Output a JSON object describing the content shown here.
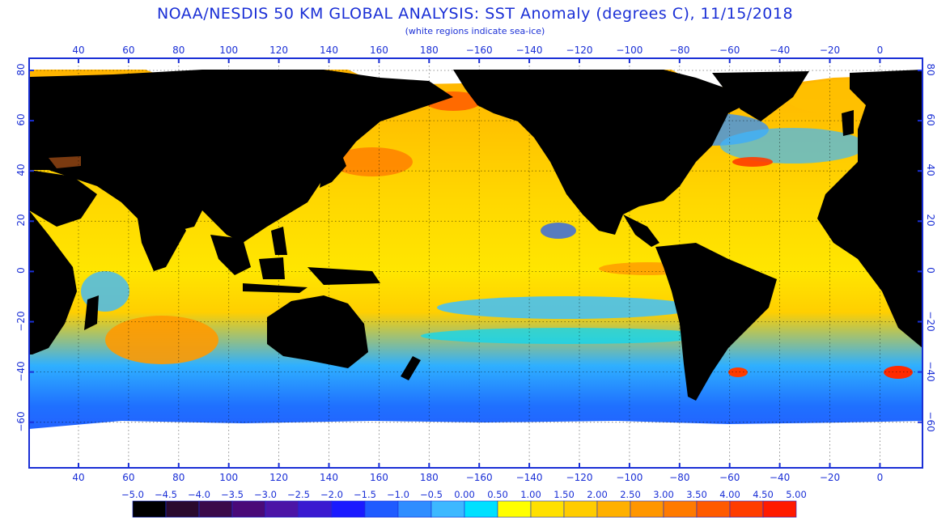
{
  "title": "NOAA/NESDIS 50 KM GLOBAL ANALYSIS: SST Anomaly (degrees C), 11/15/2018",
  "subtitle": "(white regions indicate sea-ice)",
  "map": {
    "lon_ticks_top": [
      "40",
      "60",
      "80",
      "100",
      "120",
      "140",
      "160",
      "180",
      "−160",
      "−140",
      "−120",
      "−100",
      "−80",
      "−60",
      "−40",
      "−20",
      "0"
    ],
    "lon_ticks_bottom": [
      "40",
      "60",
      "80",
      "100",
      "120",
      "140",
      "160",
      "180",
      "−160",
      "−140",
      "−120",
      "−100",
      "−80",
      "−60",
      "−40",
      "−20",
      "0"
    ],
    "lat_ticks_left": [
      "80",
      "60",
      "40",
      "20",
      "0",
      "−20",
      "−40",
      "−60"
    ],
    "lat_ticks_right": [
      "80",
      "60",
      "40",
      "20",
      "0",
      "−20",
      "−40",
      "−60"
    ],
    "land_color": "#000000",
    "ice_color": "#ffffff",
    "frame_color": "#1a2fd6"
  },
  "colorbar": {
    "labels": [
      "−5.0",
      "−4.5",
      "−4.0",
      "−3.5",
      "−3.0",
      "−2.5",
      "−2.0",
      "−1.5",
      "−1.0",
      "−0.5",
      "0.00",
      "0.50",
      "1.00",
      "1.50",
      "2.00",
      "2.50",
      "3.00",
      "3.50",
      "4.00",
      "4.50",
      "5.00"
    ],
    "colors": [
      "#000000",
      "#2a0a2e",
      "#3b0a4a",
      "#4a0a78",
      "#4c15a6",
      "#3a1ad0",
      "#1a1aff",
      "#1f5bff",
      "#2f8dff",
      "#3db8ff",
      "#00e0ff",
      "#ffff00",
      "#ffe000",
      "#ffcc00",
      "#ffb000",
      "#ff9600",
      "#ff7a00",
      "#ff5a00",
      "#ff3c00",
      "#ff1a00"
    ]
  }
}
